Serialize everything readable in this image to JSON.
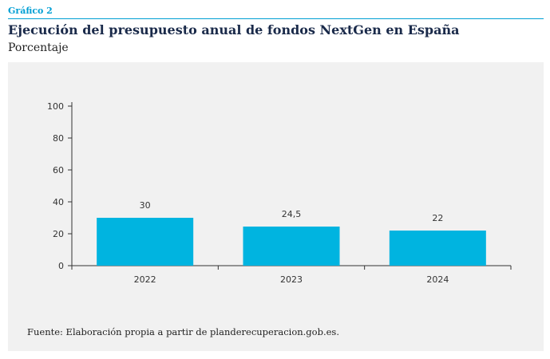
{
  "header": {
    "label": "Gráfico 2",
    "title": "Ejecución del presupuesto anual de fondos NextGen en España",
    "subtitle": "Porcentaje"
  },
  "source": "Fuente: Elaboración propia a partir de planderecuperacion.gob.es.",
  "colors": {
    "accent": "#009fd4",
    "bar": "#00b4e0",
    "panel": "#f1f1f1",
    "title": "#1a2a4a"
  },
  "chart_data": {
    "type": "bar",
    "categories": [
      "2022",
      "2023",
      "2024"
    ],
    "values": [
      30,
      24.5,
      22
    ],
    "value_labels": [
      "30",
      "24,5",
      "22"
    ],
    "yticks": [
      0,
      20,
      40,
      60,
      80,
      100
    ],
    "ylim": [
      0,
      100
    ],
    "grid": false
  }
}
